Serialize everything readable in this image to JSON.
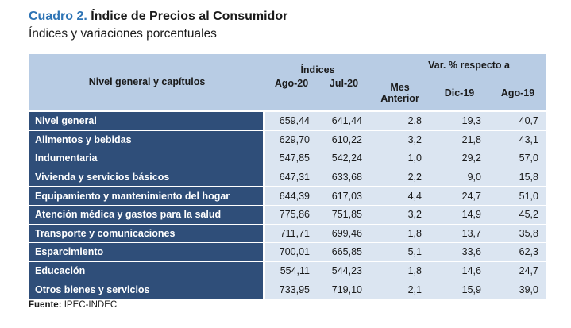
{
  "header": {
    "label": "Cuadro 2.",
    "title": "Índice de Precios al Consumidor",
    "subtitle": "Índices y variaciones porcentuales"
  },
  "table": {
    "col_caption": "Nivel general y capítulos",
    "indices_header": "Índices",
    "var_header": "Var. % respecto a",
    "columns": [
      "Ago-20",
      "Jul-20",
      "Mes Anterior",
      "Dic-19",
      "Ago-19"
    ],
    "col_mes_line1": "Mes",
    "col_mes_line2": "Anterior",
    "rows": [
      {
        "name": "Nivel general",
        "values": [
          "659,44",
          "641,44",
          "2,8",
          "19,3",
          "40,7"
        ]
      },
      {
        "name": "Alimentos y bebidas",
        "values": [
          "629,70",
          "610,22",
          "3,2",
          "21,8",
          "43,1"
        ]
      },
      {
        "name": "Indumentaria",
        "values": [
          "547,85",
          "542,24",
          "1,0",
          "29,2",
          "57,0"
        ]
      },
      {
        "name": "Vivienda y servicios básicos",
        "values": [
          "647,31",
          "633,68",
          "2,2",
          "9,0",
          "15,8"
        ]
      },
      {
        "name": "Equipamiento y mantenimiento del hogar",
        "values": [
          "644,39",
          "617,03",
          "4,4",
          "24,7",
          "51,0"
        ]
      },
      {
        "name": "Atención médica y gastos para la salud",
        "values": [
          "775,86",
          "751,85",
          "3,2",
          "14,9",
          "45,2"
        ]
      },
      {
        "name": "Transporte y comunicaciones",
        "values": [
          "711,71",
          "699,46",
          "1,8",
          "13,7",
          "35,8"
        ]
      },
      {
        "name": "Esparcimiento",
        "values": [
          "700,01",
          "665,85",
          "5,1",
          "33,6",
          "62,3"
        ]
      },
      {
        "name": "Educación",
        "values": [
          "554,11",
          "544,23",
          "1,8",
          "14,6",
          "24,7"
        ]
      },
      {
        "name": "Otros bienes y servicios",
        "values": [
          "733,95",
          "719,10",
          "2,1",
          "15,9",
          "39,0"
        ]
      }
    ]
  },
  "source": {
    "label": "Fuente:",
    "value": "IPEC-INDEC"
  }
}
